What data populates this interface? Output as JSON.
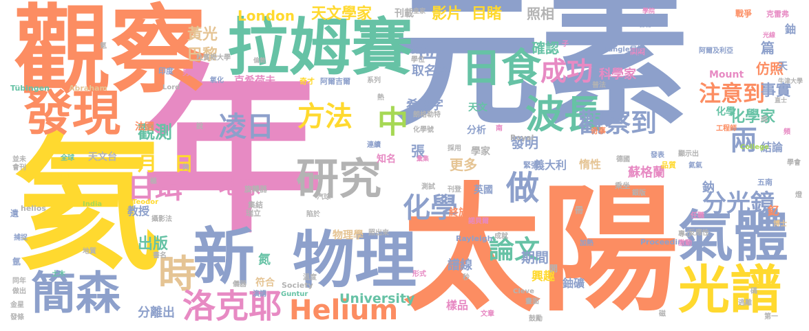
{
  "palette": {
    "orange": "#fc8d62",
    "blue": "#8da0cb",
    "pink": "#e78ac3",
    "green": "#66c2a5",
    "yellow": "#ffd92f",
    "tan": "#e5c494",
    "gray": "#b3b3b3",
    "lime": "#a6d854"
  },
  "words": [
    {
      "text": "年",
      "color": "pink"
    },
    {
      "text": "元素",
      "color": "blue"
    },
    {
      "text": "氦",
      "color": "yellow"
    },
    {
      "text": "太陽",
      "color": "orange"
    },
    {
      "text": "觀察",
      "color": "orange"
    },
    {
      "text": "拉姆賽",
      "color": "green"
    },
    {
      "text": "物理",
      "color": "blue"
    },
    {
      "text": "氣體",
      "color": "blue"
    },
    {
      "text": "光譜",
      "color": "yellow"
    },
    {
      "text": "發現",
      "color": "orange"
    },
    {
      "text": "新",
      "color": "blue"
    },
    {
      "text": "研究",
      "color": "gray"
    },
    {
      "text": "簡森",
      "color": "blue"
    },
    {
      "text": "日食",
      "color": "green"
    },
    {
      "text": "波長",
      "color": "green"
    },
    {
      "text": "時",
      "color": "tan"
    },
    {
      "text": "洛克耶",
      "color": "pink"
    },
    {
      "text": "Helium",
      "color": "orange"
    },
    {
      "text": "日珥",
      "color": "pink"
    },
    {
      "text": "中",
      "color": "lime"
    },
    {
      "text": "化學",
      "color": "blue"
    },
    {
      "text": "做",
      "color": "blue"
    },
    {
      "text": "方法",
      "color": "yellow"
    },
    {
      "text": "凌日",
      "color": "blue"
    },
    {
      "text": "成功",
      "color": "pink"
    },
    {
      "text": "觀察到",
      "color": "blue"
    },
    {
      "text": "分光鏡",
      "color": "blue"
    },
    {
      "text": "兩",
      "color": "blue"
    },
    {
      "text": "論文",
      "color": "green"
    },
    {
      "text": "注意到",
      "color": "orange"
    },
    {
      "text": "地球",
      "color": "pink"
    },
    {
      "text": "日",
      "color": "yellow"
    },
    {
      "text": "月",
      "color": "yellow"
    },
    {
      "text": "位",
      "color": "blue"
    },
    {
      "text": "觀測",
      "color": "green"
    },
    {
      "text": "出版",
      "color": "green"
    },
    {
      "text": "天文學家",
      "color": "yellow"
    },
    {
      "text": "影片",
      "color": "yellow"
    },
    {
      "text": "目睹",
      "color": "yellow"
    },
    {
      "text": "照相",
      "color": "gray"
    },
    {
      "text": "London",
      "color": "yellow"
    },
    {
      "text": "黃光",
      "color": "tan"
    },
    {
      "text": "巴黎",
      "color": "tan"
    },
    {
      "text": "University",
      "color": "green"
    },
    {
      "text": "化學家",
      "color": "green"
    },
    {
      "text": "事實",
      "color": "blue"
    },
    {
      "text": "篇",
      "color": "blue"
    },
    {
      "text": "仿照",
      "color": "orange"
    },
    {
      "text": "確認",
      "color": "green"
    },
    {
      "text": "取名為",
      "color": "blue"
    },
    {
      "text": "科學家",
      "color": "pink"
    },
    {
      "text": "希臘字",
      "color": "blue"
    },
    {
      "text": "發明",
      "color": "blue"
    },
    {
      "text": "張",
      "color": "blue"
    },
    {
      "text": "更多",
      "color": "tan"
    },
    {
      "text": "期間",
      "color": "blue"
    },
    {
      "text": "蘇格蘭",
      "color": "pink"
    },
    {
      "text": "氮",
      "color": "green"
    },
    {
      "text": "分離出",
      "color": "blue"
    },
    {
      "text": "譜線",
      "color": "blue"
    },
    {
      "text": "教授",
      "color": "blue"
    },
    {
      "text": "鈾礦",
      "color": "blue"
    },
    {
      "text": "興趣",
      "color": "yellow"
    },
    {
      "text": "樣品",
      "color": "pink"
    },
    {
      "text": "釔",
      "color": "orange"
    },
    {
      "text": "鈉",
      "color": "blue"
    },
    {
      "text": "結論",
      "color": "blue"
    },
    {
      "text": "義大利",
      "color": "blue"
    },
    {
      "text": "克希荷夫",
      "color": "pink"
    },
    {
      "text": "物理學",
      "color": "tan"
    },
    {
      "text": "鈾",
      "color": "blue"
    },
    {
      "text": "惰性",
      "color": "tan"
    },
    {
      "text": "Mount",
      "color": "pink"
    },
    {
      "text": "化學",
      "color": "green"
    },
    {
      "text": "分析",
      "color": "blue"
    },
    {
      "text": "天文",
      "color": "green"
    },
    {
      "text": "學家",
      "color": "gray"
    },
    {
      "text": "英國",
      "color": "blue"
    },
    {
      "text": "終於",
      "color": "orange"
    },
    {
      "text": "知名",
      "color": "pink"
    },
    {
      "text": "符合",
      "color": "tan"
    },
    {
      "text": "天文台",
      "color": "gray"
    },
    {
      "text": "法國",
      "color": "orange"
    },
    {
      "text": "刊載",
      "color": "gray"
    },
    {
      "text": "戰爭",
      "color": "orange"
    },
    {
      "text": "克雷弗",
      "color": "pink"
    },
    {
      "text": "Abraham",
      "color": "tan"
    },
    {
      "text": "Tübingen",
      "color": "green"
    },
    {
      "text": "Rayleigh",
      "color": "blue"
    },
    {
      "text": "Proceedings",
      "color": "blue"
    },
    {
      "text": "Royal",
      "color": "gray"
    },
    {
      "text": "Society",
      "color": "gray"
    },
    {
      "text": "Guntur",
      "color": "green"
    },
    {
      "text": "Cleve",
      "color": "gray"
    },
    {
      "text": "Langlet",
      "color": "blue"
    },
    {
      "text": "India",
      "color": "lime"
    },
    {
      "text": "helios",
      "color": "gray"
    },
    {
      "text": "argon",
      "color": "yellow"
    },
    {
      "text": "Teodor",
      "color": "yellow"
    },
    {
      "text": "Lord",
      "color": "gray"
    },
    {
      "text": "College",
      "color": "lime"
    },
    {
      "text": "杜賓根大學",
      "color": "gray"
    },
    {
      "text": "牛津大學",
      "color": "gray"
    },
    {
      "text": "印度",
      "color": "blue"
    },
    {
      "text": "男爵",
      "color": "pink"
    },
    {
      "text": "氧化",
      "color": "blue"
    },
    {
      "text": "奇才",
      "color": "yellow"
    },
    {
      "text": "阿爾吉爾",
      "color": "blue"
    },
    {
      "text": "系列",
      "color": "gray"
    },
    {
      "text": "裝置",
      "color": "blue"
    },
    {
      "text": "學位",
      "color": "gray"
    },
    {
      "text": "皇家",
      "color": "gray"
    },
    {
      "text": "倫敦",
      "color": "gray"
    },
    {
      "text": "圖團",
      "color": "pink"
    },
    {
      "text": "阿爾及利亞",
      "color": "blue"
    },
    {
      "text": "目的",
      "color": "blue"
    },
    {
      "text": "普法",
      "color": "gray"
    },
    {
      "text": "乘坐",
      "color": "gray"
    },
    {
      "text": "德國",
      "color": "gray"
    },
    {
      "text": "品質",
      "color": "yellow"
    },
    {
      "text": "氦氣",
      "color": "blue"
    },
    {
      "text": "五南",
      "color": "blue"
    },
    {
      "text": "學會",
      "color": "gray"
    },
    {
      "text": "顯示出",
      "color": "gray"
    },
    {
      "text": "工程師",
      "color": "orange"
    },
    {
      "text": "銀版",
      "color": "gray"
    },
    {
      "text": "直士",
      "color": "gray"
    },
    {
      "text": "奇事",
      "color": "orange"
    },
    {
      "text": "緊張",
      "color": "blue"
    },
    {
      "text": "旋轉器",
      "color": "gray"
    },
    {
      "text": "集結",
      "color": "gray"
    },
    {
      "text": "測試",
      "color": "gray"
    },
    {
      "text": "汽球",
      "color": "gray"
    },
    {
      "text": "瑞立",
      "color": "gray"
    },
    {
      "text": "儀器",
      "color": "gray"
    },
    {
      "text": "陷於",
      "color": "gray"
    },
    {
      "text": "照出來",
      "color": "gray"
    },
    {
      "text": "演講",
      "color": "blue"
    },
    {
      "text": "形式",
      "color": "pink"
    },
    {
      "text": "文章",
      "color": "pink"
    },
    {
      "text": "鼓勵",
      "color": "gray"
    },
    {
      "text": "畫面",
      "color": "gray"
    },
    {
      "text": "逃離",
      "color": "gray"
    },
    {
      "text": "第一",
      "color": "gray"
    },
    {
      "text": "捕捉",
      "color": "blue"
    },
    {
      "text": "同年",
      "color": "gray"
    },
    {
      "text": "做出",
      "color": "gray"
    },
    {
      "text": "發條",
      "color": "gray"
    },
    {
      "text": "金星",
      "color": "gray"
    },
    {
      "text": "並未",
      "color": "gray"
    },
    {
      "text": "會刊",
      "color": "gray"
    },
    {
      "text": "全球",
      "color": "green"
    },
    {
      "text": "攝影法",
      "color": "gray"
    },
    {
      "text": "書名",
      "color": "gray"
    },
    {
      "text": "地質",
      "color": "gray"
    },
    {
      "text": "專心",
      "color": "gray"
    },
    {
      "text": "激動",
      "color": "pink"
    },
    {
      "text": "加熱",
      "color": "blue"
    },
    {
      "text": "博士",
      "color": "tan"
    },
    {
      "text": "成就",
      "color": "gray"
    },
    {
      "text": "刊登",
      "color": "gray"
    },
    {
      "text": "反應性",
      "color": "gray"
    },
    {
      "text": "任職",
      "color": "pink"
    },
    {
      "text": "諾貝爾",
      "color": "pink"
    },
    {
      "text": "採用",
      "color": "gray"
    },
    {
      "text": "發表",
      "color": "blue"
    },
    {
      "text": "朗格勒特",
      "color": "gray"
    },
    {
      "text": "化學號",
      "color": "gray"
    },
    {
      "text": "連續",
      "color": "blue"
    },
    {
      "text": "彙集",
      "color": "pink"
    },
    {
      "text": "溫度",
      "color": "gray"
    },
    {
      "text": "土木",
      "color": "green"
    },
    {
      "text": "樁子",
      "color": "blue"
    },
    {
      "text": "合物",
      "color": "blue"
    },
    {
      "text": "學院",
      "color": "pink"
    },
    {
      "text": "光線",
      "color": "pink"
    },
    {
      "text": "天",
      "color": "blue"
    },
    {
      "text": "遺",
      "color": "blue"
    },
    {
      "text": "氬",
      "color": "blue"
    },
    {
      "text": "氪",
      "color": "gray"
    },
    {
      "text": "冊",
      "color": "gray"
    },
    {
      "text": "開",
      "color": "gray"
    },
    {
      "text": "秒",
      "color": "gray"
    },
    {
      "text": "熱",
      "color": "gray"
    },
    {
      "text": "成",
      "color": "gray"
    },
    {
      "text": "說",
      "color": "gray"
    },
    {
      "text": "夠",
      "color": "gray"
    },
    {
      "text": "極",
      "color": "gray"
    },
    {
      "text": "磁",
      "color": "gray"
    },
    {
      "text": "子",
      "color": "pink"
    },
    {
      "text": "頻",
      "color": "pink"
    },
    {
      "text": "南",
      "color": "pink"
    },
    {
      "text": "碼",
      "color": "gray"
    },
    {
      "text": "燈",
      "color": "gray"
    }
  ]
}
